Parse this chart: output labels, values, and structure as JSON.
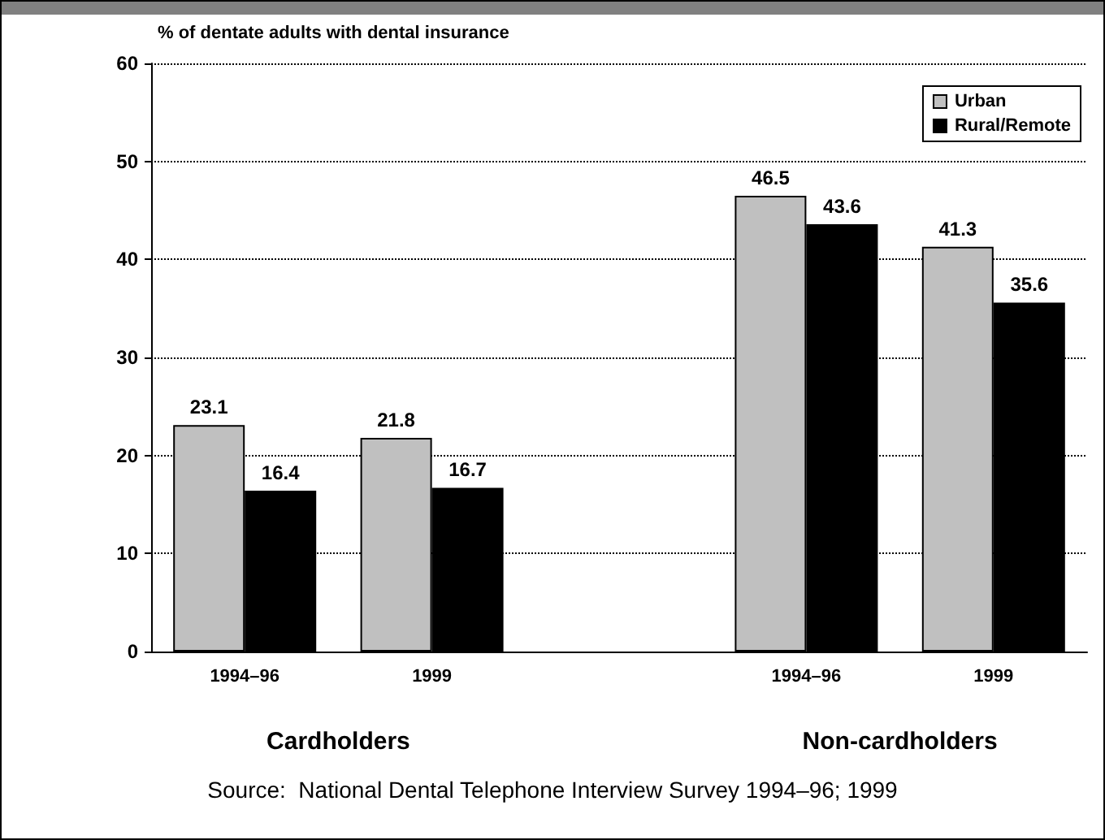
{
  "chart_data": {
    "type": "bar",
    "ylabel": "% of dentate adults with dental insurance",
    "categories": [
      "1994–96",
      "1999",
      null,
      "1994–96",
      "1999"
    ],
    "series": [
      {
        "name": "Urban",
        "color": "#c0c0c0",
        "values": [
          23.1,
          21.8,
          null,
          46.5,
          41.3
        ]
      },
      {
        "name": "Rural/Remote",
        "color": "#000000",
        "values": [
          16.4,
          16.7,
          null,
          43.6,
          35.6
        ]
      }
    ],
    "ylim": [
      0,
      60
    ],
    "yticks": [
      0,
      10,
      20,
      30,
      40,
      50,
      60
    ],
    "grid": "y",
    "legend": "top right",
    "data_labels": true,
    "annotations": [
      "Cardholders",
      "Non-cardholders",
      "Source:  National Dental Telephone Interview Survey 1994–96; 1999"
    ]
  }
}
